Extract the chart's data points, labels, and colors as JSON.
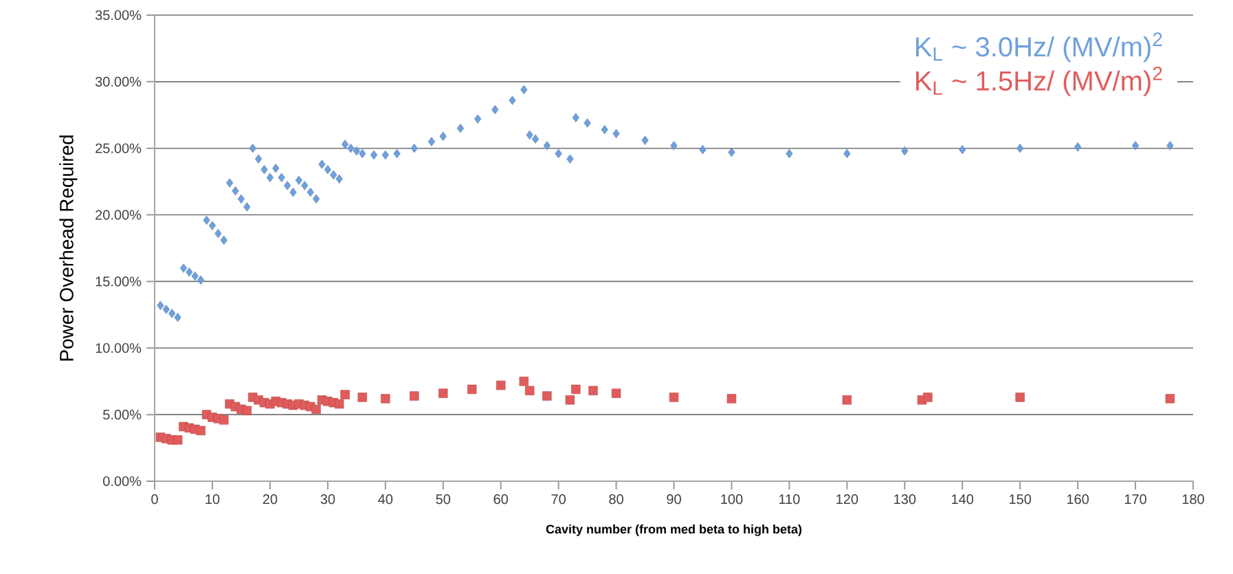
{
  "chart_data": {
    "type": "scatter",
    "xlabel": "**Cavity number (from med beta to high beta)**",
    "ylabel": "Power Overhead Required",
    "xlim": [
      0,
      180
    ],
    "xticks": [
      0,
      10,
      20,
      30,
      40,
      50,
      60,
      70,
      80,
      90,
      100,
      110,
      120,
      130,
      140,
      150,
      160,
      170,
      180
    ],
    "ylim": [
      0,
      35
    ],
    "yticks": [
      {
        "value": 0,
        "label": "0.00%"
      },
      {
        "value": 5,
        "label": "5.00%"
      },
      {
        "value": 10,
        "label": "10.00%"
      },
      {
        "value": 15,
        "label": "15.00%"
      },
      {
        "value": 20,
        "label": "20.00%"
      },
      {
        "value": 25,
        "label": "25.00%"
      },
      {
        "value": 30,
        "label": "30.00%"
      },
      {
        "value": 35,
        "label": "35.00%"
      }
    ],
    "grid": "y",
    "legend": "top right",
    "series": [
      {
        "name": "K$_{L}$ ~ 3.0Hz/ (MV/m)$^{2}$",
        "color": "#6fa0dc",
        "marker": "diamond",
        "x": [
          1,
          2,
          3,
          4,
          5,
          6,
          7,
          8,
          9,
          10,
          11,
          12,
          13,
          14,
          15,
          16,
          17,
          18,
          19,
          20,
          21,
          22,
          23,
          24,
          25,
          26,
          27,
          28,
          29,
          30,
          31,
          32,
          33,
          34,
          35,
          36,
          38,
          40,
          42,
          45,
          48,
          50,
          53,
          56,
          59,
          62,
          64,
          65,
          66,
          68,
          70,
          72,
          73,
          75,
          78,
          80,
          85,
          90,
          95,
          100,
          110,
          120,
          130,
          140,
          150,
          160,
          170,
          176
        ],
        "values": [
          13.2,
          12.9,
          12.6,
          12.3,
          16.0,
          15.7,
          15.4,
          15.1,
          19.6,
          19.2,
          18.6,
          18.1,
          22.4,
          21.8,
          21.2,
          20.6,
          25.0,
          24.2,
          23.4,
          22.8,
          23.5,
          22.8,
          22.2,
          21.7,
          22.6,
          22.2,
          21.7,
          21.2,
          23.8,
          23.4,
          23.0,
          22.7,
          25.3,
          25.0,
          24.8,
          24.6,
          24.5,
          24.5,
          24.6,
          25.0,
          25.5,
          25.9,
          26.5,
          27.2,
          27.9,
          28.6,
          29.4,
          26.0,
          25.7,
          25.2,
          24.6,
          24.2,
          27.3,
          26.9,
          26.4,
          26.1,
          25.6,
          25.2,
          24.9,
          24.7,
          24.6,
          24.6,
          24.8,
          24.9,
          25.0,
          25.1,
          25.2,
          25.2
        ]
      },
      {
        "name": "K$_{L}$ ~ 1.5Hz/ (MV/m)$^{2}$",
        "color": "#e05c5c",
        "marker": "square",
        "x": [
          1,
          2,
          3,
          4,
          5,
          6,
          7,
          8,
          9,
          10,
          11,
          12,
          13,
          14,
          15,
          16,
          17,
          18,
          19,
          20,
          21,
          22,
          23,
          24,
          25,
          26,
          27,
          28,
          29,
          30,
          31,
          32,
          33,
          36,
          40,
          45,
          50,
          55,
          60,
          64,
          65,
          68,
          72,
          73,
          76,
          80,
          90,
          100,
          120,
          133,
          134,
          150,
          176
        ],
        "values": [
          3.3,
          3.2,
          3.1,
          3.1,
          4.1,
          4.0,
          3.9,
          3.8,
          5.0,
          4.8,
          4.7,
          4.6,
          5.8,
          5.6,
          5.4,
          5.3,
          6.3,
          6.1,
          5.9,
          5.8,
          6.0,
          5.9,
          5.8,
          5.7,
          5.8,
          5.7,
          5.6,
          5.4,
          6.1,
          6.0,
          5.9,
          5.8,
          6.5,
          6.3,
          6.2,
          6.4,
          6.6,
          6.9,
          7.2,
          7.5,
          6.8,
          6.4,
          6.1,
          6.9,
          6.8,
          6.6,
          6.3,
          6.2,
          6.1,
          6.1,
          6.3,
          6.3,
          6.2
        ]
      }
    ]
  }
}
